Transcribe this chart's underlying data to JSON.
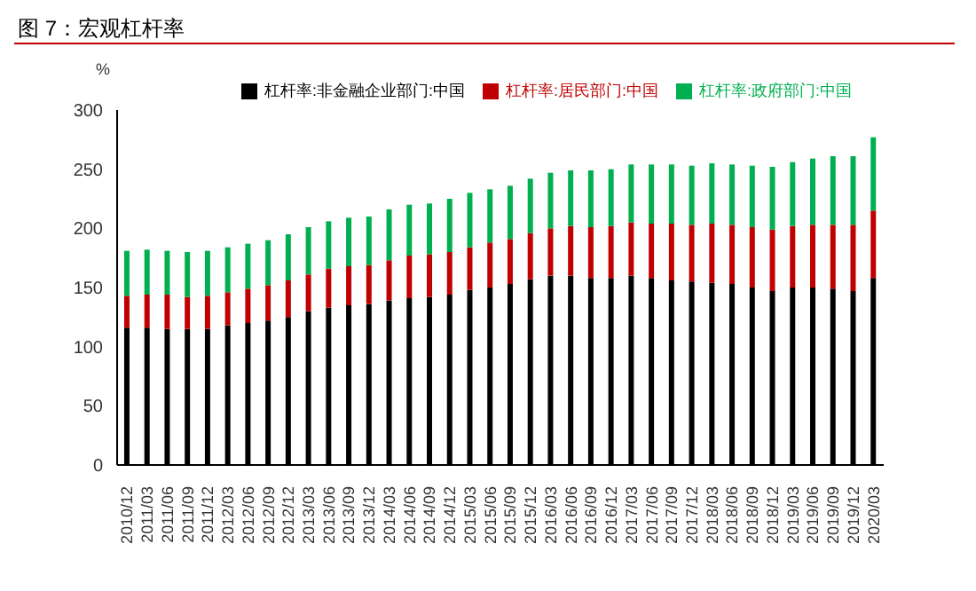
{
  "chart_data": {
    "type": "bar",
    "title": "图 7：宏观杠杆率",
    "ylabel": "%",
    "stacked": true,
    "legend": "top",
    "categories": [
      "2010/12",
      "2011/03",
      "2011/06",
      "2011/09",
      "2011/12",
      "2012/03",
      "2012/06",
      "2012/09",
      "2012/12",
      "2013/03",
      "2013/06",
      "2013/09",
      "2013/12",
      "2014/03",
      "2014/06",
      "2014/09",
      "2014/12",
      "2015/03",
      "2015/06",
      "2015/09",
      "2015/12",
      "2016/03",
      "2016/06",
      "2016/09",
      "2016/12",
      "2017/03",
      "2017/06",
      "2017/09",
      "2017/12",
      "2018/03",
      "2018/06",
      "2018/09",
      "2018/12",
      "2019/03",
      "2019/06",
      "2019/09",
      "2019/12",
      "2020/03"
    ],
    "series": [
      {
        "name": "杠杆率:非金融企业部门:中国",
        "color": "#000000",
        "values": [
          116,
          116,
          115,
          115,
          115,
          118,
          120,
          122,
          125,
          130,
          133,
          135,
          136,
          139,
          141,
          142,
          144,
          148,
          150,
          153,
          157,
          160,
          160,
          158,
          158,
          160,
          158,
          156,
          155,
          154,
          153,
          150,
          147,
          150,
          150,
          149,
          147,
          158
        ]
      },
      {
        "name": "杠杆率:居民部门:中国",
        "color": "#c00000",
        "values": [
          27,
          28,
          29,
          27,
          28,
          28,
          29,
          30,
          31,
          31,
          33,
          33,
          33,
          34,
          36,
          36,
          36,
          36,
          38,
          38,
          39,
          40,
          42,
          43,
          44,
          45,
          46,
          48,
          48,
          50,
          50,
          51,
          52,
          52,
          53,
          54,
          56,
          57
        ]
      },
      {
        "name": "杠杆率:政府部门:中国",
        "color": "#00b050",
        "values": [
          38,
          38,
          37,
          38,
          38,
          38,
          38,
          38,
          39,
          40,
          40,
          41,
          41,
          43,
          43,
          43,
          45,
          46,
          45,
          45,
          46,
          47,
          47,
          48,
          48,
          49,
          50,
          50,
          50,
          51,
          51,
          52,
          53,
          54,
          56,
          58,
          58,
          62
        ]
      }
    ],
    "ylim": [
      0,
      300
    ],
    "yticks": [
      0,
      50,
      100,
      150,
      200,
      250,
      300
    ]
  }
}
